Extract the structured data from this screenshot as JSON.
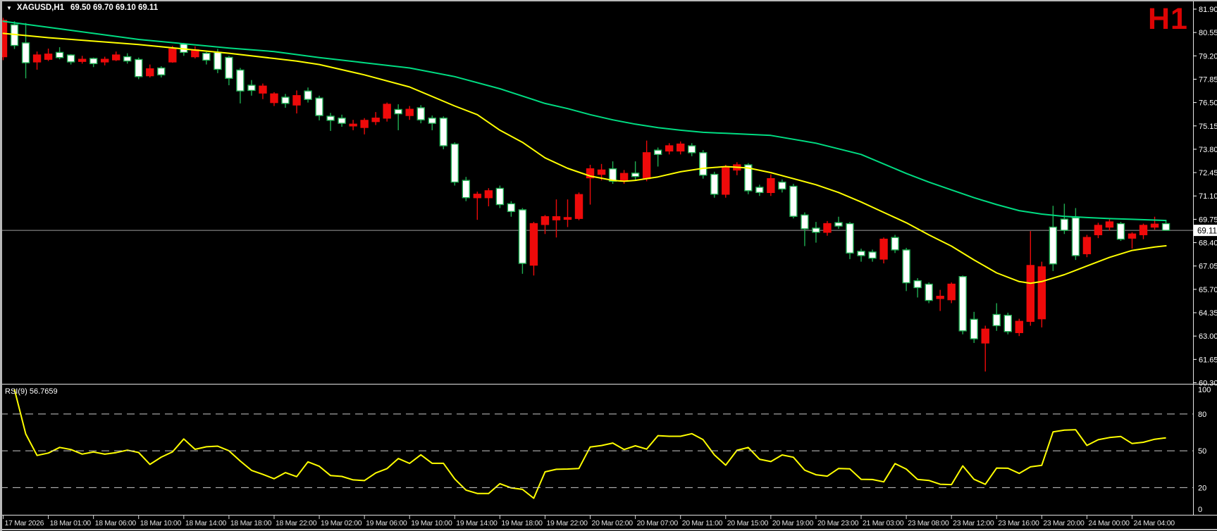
{
  "header": {
    "dropdown_icon": "▼",
    "symbol_period": "XAGUSD,H1",
    "ohlc": "69.50 69.70 69.10 69.11"
  },
  "watermark": {
    "text": "H1",
    "color": "#dd0404"
  },
  "colors": {
    "background": "#000000",
    "bull_fill": "#ffffff",
    "bull_stroke": "#1fae52",
    "bear": "#ee0a0a",
    "ma_fast": "#ffff00",
    "ma_slow": "#00dc82",
    "rsi_line": "#ffff00",
    "price_line": "#9c9c9c",
    "axis_text": "#ffffff",
    "time_text": "#e2e2e2",
    "level_dash": "#c9c9c9",
    "separator": "#e4e4e4",
    "frame": "#b9b9b9"
  },
  "price_axis": {
    "tick_labels": [
      "81.90",
      "80.55",
      "79.20",
      "77.85",
      "76.50",
      "75.15",
      "73.80",
      "72.45",
      "71.10",
      "69.75",
      "68.40",
      "67.05",
      "65.70",
      "64.35",
      "63.00",
      "61.65",
      "60.30"
    ],
    "tick_top_price": 81.9,
    "tick_step": 1.35,
    "current_price": 69.11,
    "current_price_label": "69.11"
  },
  "time_axis": {
    "labels": [
      "17 Mar 2026",
      "18 Mar 01:00",
      "18 Mar 06:00",
      "18 Mar 10:00",
      "18 Mar 14:00",
      "18 Mar 18:00",
      "18 Mar 22:00",
      "19 Mar 02:00",
      "19 Mar 06:00",
      "19 Mar 10:00",
      "19 Mar 14:00",
      "19 Mar 18:00",
      "19 Mar 22:00",
      "20 Mar 02:00",
      "20 Mar 07:00",
      "20 Mar 11:00",
      "20 Mar 15:00",
      "20 Mar 19:00",
      "20 Mar 23:00",
      "21 Mar 03:00",
      "23 Mar 08:00",
      "23 Mar 12:00",
      "23 Mar 16:00",
      "23 Mar 20:00",
      "24 Mar 00:00",
      "24 Mar 04:00"
    ],
    "candles_per_tick": 4
  },
  "rsi_pane": {
    "label": "RSI(9) 56.7659",
    "indicator": "RSI",
    "period": 9,
    "value": 56.7659,
    "levels": [
      80,
      50,
      20
    ],
    "scale_labels": [
      {
        "v": 100,
        "t": "100"
      },
      {
        "v": 80,
        "t": "80"
      },
      {
        "v": 50,
        "t": "50"
      },
      {
        "v": 20,
        "t": "20"
      },
      {
        "v": 0,
        "t": "0"
      }
    ]
  },
  "chart_data": {
    "type": "candlestick",
    "symbol": "XAGUSD",
    "timeframe": "H1",
    "title": "XAGUSD,H1  69.50 69.70 69.10 69.11",
    "ylim": [
      60.3,
      81.9
    ],
    "grid": false,
    "ohlc": [
      [
        81.25,
        81.4,
        78.95,
        79.15
      ],
      [
        79.8,
        81.2,
        79.6,
        81.0
      ],
      [
        78.8,
        81.1,
        77.9,
        79.95
      ],
      [
        79.25,
        79.45,
        78.4,
        78.85
      ],
      [
        79.3,
        79.62,
        78.9,
        79.0
      ],
      [
        79.1,
        79.7,
        79.0,
        79.4
      ],
      [
        78.85,
        79.3,
        78.7,
        79.25
      ],
      [
        79.0,
        79.2,
        78.75,
        78.88
      ],
      [
        78.75,
        79.1,
        78.55,
        79.05
      ],
      [
        79.0,
        79.15,
        78.65,
        78.85
      ],
      [
        79.25,
        79.45,
        78.9,
        78.97
      ],
      [
        78.9,
        79.35,
        78.75,
        79.15
      ],
      [
        78.0,
        79.1,
        77.85,
        78.99
      ],
      [
        78.45,
        78.7,
        77.95,
        78.05
      ],
      [
        78.1,
        78.6,
        77.95,
        78.5
      ],
      [
        79.6,
        79.78,
        78.8,
        78.85
      ],
      [
        79.4,
        79.95,
        79.2,
        79.88
      ],
      [
        79.55,
        79.75,
        79.05,
        79.15
      ],
      [
        78.95,
        79.42,
        78.7,
        79.35
      ],
      [
        78.42,
        79.6,
        78.2,
        79.4
      ],
      [
        77.9,
        79.2,
        77.5,
        79.11
      ],
      [
        77.17,
        78.5,
        76.45,
        78.38
      ],
      [
        77.2,
        77.8,
        76.9,
        77.5
      ],
      [
        77.45,
        77.6,
        76.7,
        77.05
      ],
      [
        77.0,
        77.1,
        76.3,
        76.5
      ],
      [
        76.45,
        77.0,
        76.2,
        76.81
      ],
      [
        76.9,
        77.2,
        75.87,
        76.36
      ],
      [
        76.68,
        77.37,
        76.5,
        77.17
      ],
      [
        75.75,
        76.9,
        75.47,
        76.76
      ],
      [
        75.47,
        75.9,
        74.86,
        75.71
      ],
      [
        75.3,
        75.8,
        75.1,
        75.6
      ],
      [
        75.25,
        75.5,
        74.9,
        75.15
      ],
      [
        75.47,
        75.6,
        74.66,
        75.06
      ],
      [
        75.6,
        75.95,
        75.2,
        75.4
      ],
      [
        76.4,
        76.5,
        75.4,
        75.6
      ],
      [
        75.85,
        76.4,
        74.9,
        76.1
      ],
      [
        76.11,
        76.3,
        75.5,
        75.75
      ],
      [
        75.5,
        76.35,
        75.3,
        76.2
      ],
      [
        75.3,
        75.75,
        74.9,
        75.6
      ],
      [
        74.0,
        75.7,
        73.8,
        75.6
      ],
      [
        71.9,
        74.2,
        71.7,
        74.1
      ],
      [
        71.0,
        72.2,
        70.8,
        72.0
      ],
      [
        71.2,
        71.35,
        69.72,
        71.0
      ],
      [
        71.4,
        71.55,
        70.5,
        71.0
      ],
      [
        70.6,
        71.7,
        70.4,
        71.54
      ],
      [
        70.2,
        70.8,
        69.9,
        70.65
      ],
      [
        67.2,
        70.4,
        66.6,
        70.3
      ],
      [
        69.5,
        69.6,
        66.5,
        67.1
      ],
      [
        69.9,
        70.0,
        68.9,
        69.45
      ],
      [
        69.9,
        70.9,
        68.7,
        69.72
      ],
      [
        69.85,
        70.9,
        69.3,
        69.75
      ],
      [
        71.18,
        71.3,
        69.7,
        69.8
      ],
      [
        72.67,
        72.9,
        70.6,
        72.15
      ],
      [
        72.6,
        72.95,
        72.0,
        72.35
      ],
      [
        71.95,
        73.1,
        71.8,
        72.67
      ],
      [
        72.4,
        72.6,
        71.8,
        72.0
      ],
      [
        72.22,
        73.1,
        72.0,
        72.42
      ],
      [
        73.6,
        74.3,
        71.95,
        72.1
      ],
      [
        73.5,
        73.9,
        72.8,
        73.75
      ],
      [
        74.0,
        74.15,
        73.5,
        73.7
      ],
      [
        74.1,
        74.25,
        73.5,
        73.7
      ],
      [
        73.6,
        74.15,
        73.4,
        74.0
      ],
      [
        72.3,
        73.75,
        72.1,
        73.6
      ],
      [
        71.2,
        72.5,
        71.0,
        72.35
      ],
      [
        72.75,
        72.9,
        71.0,
        71.2
      ],
      [
        72.9,
        73.05,
        72.3,
        72.6
      ],
      [
        71.4,
        73.0,
        71.2,
        72.9
      ],
      [
        71.3,
        71.75,
        71.1,
        71.6
      ],
      [
        72.1,
        72.35,
        71.1,
        71.3
      ],
      [
        71.5,
        72.05,
        71.3,
        71.9
      ],
      [
        69.92,
        71.8,
        69.8,
        71.66
      ],
      [
        69.2,
        70.15,
        68.2,
        70.0
      ],
      [
        69.0,
        69.6,
        68.4,
        69.24
      ],
      [
        69.5,
        69.65,
        68.8,
        69.0
      ],
      [
        69.36,
        69.9,
        69.2,
        69.56
      ],
      [
        67.8,
        69.6,
        67.45,
        69.5
      ],
      [
        67.65,
        68.05,
        67.3,
        67.9
      ],
      [
        67.5,
        68.0,
        67.3,
        67.86
      ],
      [
        68.6,
        68.7,
        67.2,
        67.45
      ],
      [
        67.98,
        68.85,
        67.8,
        68.7
      ],
      [
        66.08,
        68.1,
        65.6,
        67.98
      ],
      [
        65.8,
        66.35,
        65.23,
        66.2
      ],
      [
        65.06,
        66.1,
        64.9,
        66.0
      ],
      [
        65.3,
        65.67,
        64.45,
        65.17
      ],
      [
        66.0,
        66.1,
        64.9,
        65.1
      ],
      [
        63.3,
        66.5,
        63.1,
        66.44
      ],
      [
        62.84,
        64.4,
        62.6,
        63.97
      ],
      [
        63.4,
        63.6,
        60.95,
        62.6
      ],
      [
        63.6,
        64.9,
        63.3,
        64.25
      ],
      [
        63.26,
        64.35,
        63.1,
        64.2
      ],
      [
        63.85,
        64.0,
        63.0,
        63.2
      ],
      [
        67.08,
        69.07,
        63.6,
        63.85
      ],
      [
        67.0,
        67.3,
        63.5,
        64.0
      ],
      [
        67.17,
        70.53,
        66.76,
        69.3
      ],
      [
        69.11,
        70.65,
        68.9,
        69.76
      ],
      [
        67.65,
        70.4,
        67.4,
        69.84
      ],
      [
        68.7,
        68.85,
        67.56,
        67.76
      ],
      [
        69.4,
        69.55,
        68.66,
        68.86
      ],
      [
        69.6,
        69.75,
        69.1,
        69.3
      ],
      [
        68.6,
        69.6,
        68.5,
        69.5
      ],
      [
        68.9,
        69.0,
        68.06,
        68.66
      ],
      [
        69.4,
        69.5,
        68.6,
        68.86
      ],
      [
        69.47,
        69.9,
        69.15,
        69.3
      ],
      [
        69.11,
        69.7,
        69.1,
        69.5
      ]
    ],
    "ma_slow_anchors": [
      [
        0,
        81.2
      ],
      [
        4,
        80.85
      ],
      [
        8,
        80.5
      ],
      [
        12,
        80.15
      ],
      [
        16,
        79.9
      ],
      [
        20,
        79.65
      ],
      [
        24,
        79.45
      ],
      [
        28,
        79.1
      ],
      [
        32,
        78.8
      ],
      [
        36,
        78.5
      ],
      [
        40,
        78.0
      ],
      [
        44,
        77.3
      ],
      [
        48,
        76.45
      ],
      [
        50,
        76.15
      ],
      [
        52,
        75.8
      ],
      [
        54,
        75.5
      ],
      [
        56,
        75.25
      ],
      [
        58,
        75.05
      ],
      [
        60,
        74.9
      ],
      [
        62,
        74.78
      ],
      [
        64,
        74.72
      ],
      [
        68,
        74.6
      ],
      [
        72,
        74.15
      ],
      [
        76,
        73.5
      ],
      [
        80,
        72.4
      ],
      [
        82,
        71.9
      ],
      [
        84,
        71.45
      ],
      [
        86,
        71.0
      ],
      [
        88,
        70.6
      ],
      [
        90,
        70.25
      ],
      [
        92,
        70.05
      ],
      [
        94,
        69.92
      ],
      [
        96,
        69.85
      ],
      [
        98,
        69.79
      ],
      [
        100,
        69.75
      ],
      [
        103,
        69.68
      ]
    ],
    "ma_fast_anchors": [
      [
        0,
        80.5
      ],
      [
        4,
        80.25
      ],
      [
        8,
        80.05
      ],
      [
        12,
        79.85
      ],
      [
        16,
        79.6
      ],
      [
        20,
        79.35
      ],
      [
        24,
        79.05
      ],
      [
        26,
        78.9
      ],
      [
        28,
        78.7
      ],
      [
        32,
        78.1
      ],
      [
        36,
        77.4
      ],
      [
        40,
        76.3
      ],
      [
        42,
        75.8
      ],
      [
        44,
        74.9
      ],
      [
        46,
        74.2
      ],
      [
        48,
        73.3
      ],
      [
        50,
        72.7
      ],
      [
        52,
        72.25
      ],
      [
        54,
        72.0
      ],
      [
        55,
        71.95
      ],
      [
        56,
        72.0
      ],
      [
        58,
        72.2
      ],
      [
        60,
        72.5
      ],
      [
        62,
        72.7
      ],
      [
        64,
        72.8
      ],
      [
        66,
        72.72
      ],
      [
        68,
        72.45
      ],
      [
        70,
        72.1
      ],
      [
        72,
        71.75
      ],
      [
        74,
        71.3
      ],
      [
        76,
        70.75
      ],
      [
        78,
        70.15
      ],
      [
        80,
        69.55
      ],
      [
        82,
        68.85
      ],
      [
        84,
        68.2
      ],
      [
        86,
        67.4
      ],
      [
        88,
        66.65
      ],
      [
        90,
        66.15
      ],
      [
        91,
        66.05
      ],
      [
        92,
        66.15
      ],
      [
        94,
        66.55
      ],
      [
        96,
        67.05
      ],
      [
        98,
        67.55
      ],
      [
        100,
        67.95
      ],
      [
        102,
        68.15
      ],
      [
        103,
        68.22
      ]
    ]
  }
}
